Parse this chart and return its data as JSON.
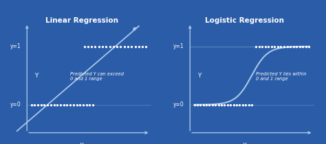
{
  "bg_color": "#2b5ca8",
  "line_color": "#a8c8e8",
  "dot_color": "#ffffff",
  "text_color": "#ffffff",
  "title_left": "Linear Regression",
  "title_right": "Logistic Regression",
  "annotation_left": "Predicted Y can exceed\n0 and 1 range",
  "annotation_right": "Predicted Y lies within\n0 and 1 range",
  "ylabel": "Y",
  "xlabel": "X",
  "y0_label": "y=0",
  "y1_label": "y=1"
}
